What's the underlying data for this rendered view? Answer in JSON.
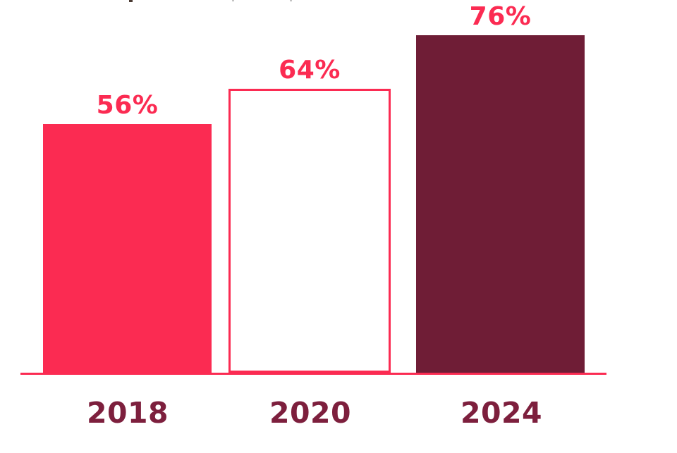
{
  "chart_data": {
    "type": "bar",
    "title": "",
    "xlabel": "",
    "ylabel": "",
    "categories": [
      "2018",
      "2020",
      "2024"
    ],
    "values": [
      56,
      64,
      76
    ],
    "value_labels": [
      "56%",
      "64%",
      "76%"
    ],
    "series": [
      {
        "name": "percent",
        "values": [
          56,
          64,
          76
        ]
      }
    ],
    "bar_styles": [
      {
        "fill": "#fb2b52",
        "border": "none"
      },
      {
        "fill": "#ffffff",
        "border": "#fb2b52"
      },
      {
        "fill": "#6f1d36",
        "border": "none"
      }
    ],
    "colors": {
      "accent_pink": "#fb2b52",
      "dark_maroon": "#6f1d36",
      "category_label_color": "#7d1f3d",
      "axis_line_color": "#fb2b52"
    },
    "grid": false,
    "legend": "none",
    "baseline_value": 0
  }
}
